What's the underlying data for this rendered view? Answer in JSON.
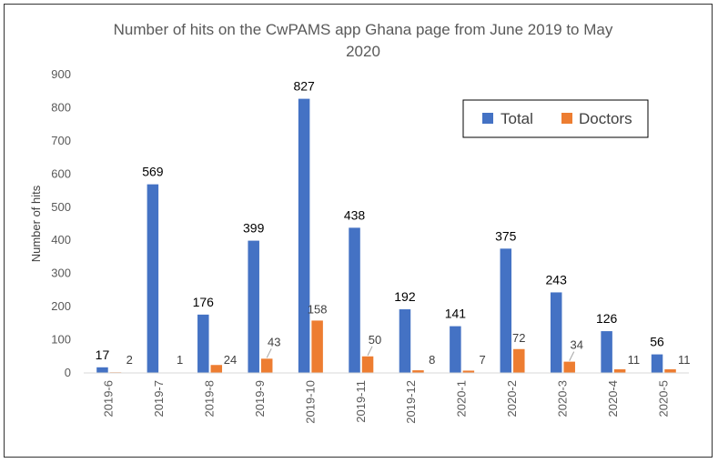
{
  "chart_data": {
    "type": "bar",
    "title_line1": "Number of hits on the CwPAMS app Ghana page from June 2019 to May",
    "title_line2": "2020",
    "xlabel": "",
    "ylabel": "Number of hits",
    "ylim": [
      0,
      900
    ],
    "yticks": [
      0,
      100,
      200,
      300,
      400,
      500,
      600,
      700,
      800,
      900
    ],
    "categories": [
      "2019-6",
      "2019-7",
      "2019-8",
      "2019-9",
      "2019-10",
      "2019-11",
      "2019-12",
      "2020-1",
      "2020-2",
      "2020-3",
      "2020-4",
      "2020-5"
    ],
    "series": [
      {
        "name": "Total",
        "color": "#4472C4",
        "values": [
          17,
          569,
          176,
          399,
          827,
          438,
          192,
          141,
          375,
          243,
          126,
          56
        ]
      },
      {
        "name": "Doctors",
        "color": "#ED7D31",
        "values": [
          2,
          1,
          24,
          43,
          158,
          50,
          8,
          7,
          72,
          34,
          11,
          11
        ]
      }
    ],
    "legend_position": "top-right"
  }
}
